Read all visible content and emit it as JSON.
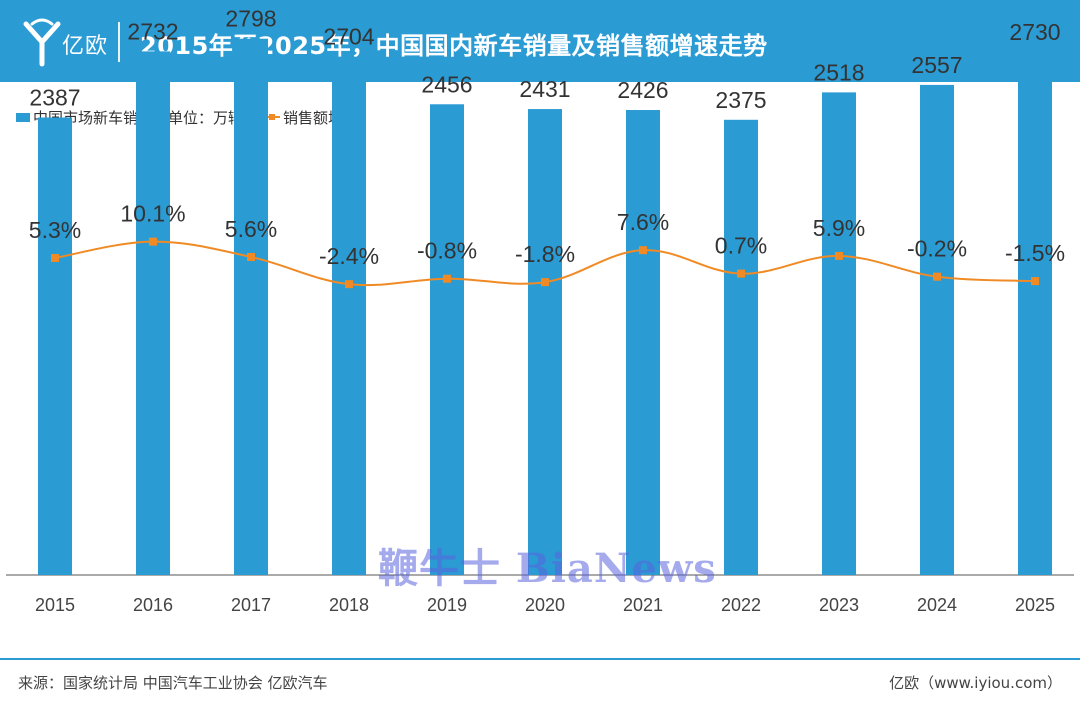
{
  "header": {
    "logo_text": "亿欧",
    "title": "2015年至2025年，中国国内新车销量及销售额增速走势"
  },
  "legend": {
    "bar_label": "中国市场新车销量（单位：万辆）",
    "line_label": "销售额增速"
  },
  "colors": {
    "brand": "#2b9bd4",
    "bar": "#2b9bd4",
    "line": "#f08a24"
  },
  "chart_data": {
    "type": "bar+line",
    "categories": [
      "2015",
      "2016",
      "2017",
      "2018",
      "2019",
      "2020",
      "2021",
      "2022",
      "2023",
      "2024",
      "2025"
    ],
    "series": [
      {
        "name": "中国市场新车销量（单位：万辆）",
        "type": "bar",
        "values": [
          2387,
          2732,
          2798,
          2704,
          2456,
          2431,
          2426,
          2375,
          2518,
          2557,
          2730
        ],
        "labels": [
          "2387",
          "2732",
          "2798",
          "2704",
          "2456",
          "2431",
          "2426",
          "2375",
          "2518",
          "2557",
          "2730"
        ]
      },
      {
        "name": "销售额增速",
        "type": "line",
        "values": [
          5.3,
          10.1,
          5.6,
          -2.4,
          -0.8,
          -1.8,
          7.6,
          0.7,
          5.9,
          -0.2,
          -1.5
        ],
        "labels": [
          "5.3%",
          "10.1%",
          "5.6%",
          "-2.4%",
          "-0.8%",
          "-1.8%",
          "7.6%",
          "0.7%",
          "5.9%",
          "-0.2%",
          "-1.5%"
        ]
      }
    ],
    "ylim_bars": [
      0,
      3000
    ],
    "ylim_line": [
      -15,
      35
    ],
    "legend_position": "top-left"
  },
  "footer": {
    "source": "来源：国家统计局 中国汽车工业协会 亿欧汽车",
    "site": "亿欧（www.iyiou.com）"
  },
  "watermark": "鞭牛士 BiaNews"
}
